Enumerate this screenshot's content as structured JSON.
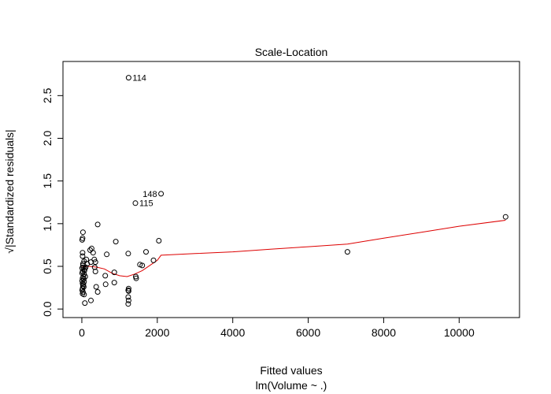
{
  "chart_data": {
    "type": "scatter",
    "title": "Scale-Location",
    "xlabel": "Fitted values",
    "xlabel2": "lm(Volume ~ .)",
    "ylabel": "√|Standardized residuals|",
    "xlim": [
      -500,
      11600
    ],
    "ylim": [
      -0.1,
      2.9
    ],
    "xticks": [
      0,
      2000,
      4000,
      6000,
      8000,
      10000
    ],
    "yticks": [
      0.0,
      0.5,
      1.0,
      1.5,
      2.0,
      2.5
    ],
    "xtick_labels": [
      "0",
      "2000",
      "4000",
      "6000",
      "8000",
      "10000"
    ],
    "ytick_labels": [
      "0.0",
      "0.5",
      "1.0",
      "1.5",
      "2.0",
      "2.5"
    ],
    "grid": false,
    "colors": {
      "points": "#000000",
      "smoother": "#dd0000"
    },
    "points": [
      [
        1240,
        2.71
      ],
      [
        2100,
        1.35
      ],
      [
        1420,
        1.24
      ],
      [
        11230,
        1.08
      ],
      [
        7040,
        0.67
      ],
      [
        420,
        0.99
      ],
      [
        900,
        0.79
      ],
      [
        2040,
        0.8
      ],
      [
        1700,
        0.67
      ],
      [
        1230,
        0.65
      ],
      [
        660,
        0.64
      ],
      [
        1540,
        0.52
      ],
      [
        1600,
        0.51
      ],
      [
        1900,
        0.57
      ],
      [
        1430,
        0.38
      ],
      [
        1440,
        0.36
      ],
      [
        1240,
        0.24
      ],
      [
        1230,
        0.22
      ],
      [
        1240,
        0.21
      ],
      [
        1230,
        0.14
      ],
      [
        1240,
        0.1
      ],
      [
        1230,
        0.06
      ],
      [
        860,
        0.31
      ],
      [
        860,
        0.43
      ],
      [
        620,
        0.39
      ],
      [
        630,
        0.29
      ],
      [
        420,
        0.2
      ],
      [
        380,
        0.26
      ],
      [
        360,
        0.44
      ],
      [
        340,
        0.49
      ],
      [
        360,
        0.55
      ],
      [
        330,
        0.58
      ],
      [
        300,
        0.66
      ],
      [
        260,
        0.71
      ],
      [
        220,
        0.69
      ],
      [
        240,
        0.55
      ],
      [
        240,
        0.1
      ],
      [
        140,
        0.53
      ],
      [
        120,
        0.58
      ],
      [
        100,
        0.49
      ],
      [
        80,
        0.47
      ],
      [
        60,
        0.41
      ],
      [
        60,
        0.32
      ],
      [
        40,
        0.38
      ],
      [
        30,
        0.53
      ],
      [
        20,
        0.62
      ],
      [
        20,
        0.66
      ],
      [
        10,
        0.81
      ],
      [
        20,
        0.83
      ],
      [
        30,
        0.9
      ],
      [
        20,
        0.44
      ],
      [
        10,
        0.42
      ],
      [
        20,
        0.36
      ],
      [
        10,
        0.33
      ],
      [
        20,
        0.3
      ],
      [
        30,
        0.27
      ],
      [
        20,
        0.24
      ],
      [
        30,
        0.2
      ],
      [
        20,
        0.18
      ],
      [
        60,
        0.17
      ],
      [
        80,
        0.07
      ],
      [
        50,
        0.26
      ],
      [
        40,
        0.49
      ],
      [
        60,
        0.56
      ],
      [
        10,
        0.48
      ],
      [
        30,
        0.51
      ],
      [
        40,
        0.29
      ],
      [
        70,
        0.45
      ],
      [
        90,
        0.38
      ],
      [
        10,
        0.22
      ],
      [
        50,
        0.35
      ]
    ],
    "labeled_points": [
      {
        "label": "114",
        "x": 1240,
        "y": 2.71
      },
      {
        "label": "148",
        "x": 2100,
        "y": 1.35
      },
      {
        "label": "115",
        "x": 1420,
        "y": 1.24
      }
    ],
    "smoother": [
      [
        0,
        0.5
      ],
      [
        200,
        0.5
      ],
      [
        400,
        0.49
      ],
      [
        600,
        0.47
      ],
      [
        800,
        0.42
      ],
      [
        1000,
        0.39
      ],
      [
        1200,
        0.38
      ],
      [
        1400,
        0.41
      ],
      [
        1600,
        0.45
      ],
      [
        1800,
        0.51
      ],
      [
        2000,
        0.57
      ],
      [
        2100,
        0.63
      ],
      [
        3000,
        0.65
      ],
      [
        4000,
        0.67
      ],
      [
        5000,
        0.7
      ],
      [
        6000,
        0.73
      ],
      [
        7040,
        0.76
      ],
      [
        8000,
        0.83
      ],
      [
        9000,
        0.9
      ],
      [
        10000,
        0.97
      ],
      [
        11230,
        1.04
      ]
    ]
  }
}
